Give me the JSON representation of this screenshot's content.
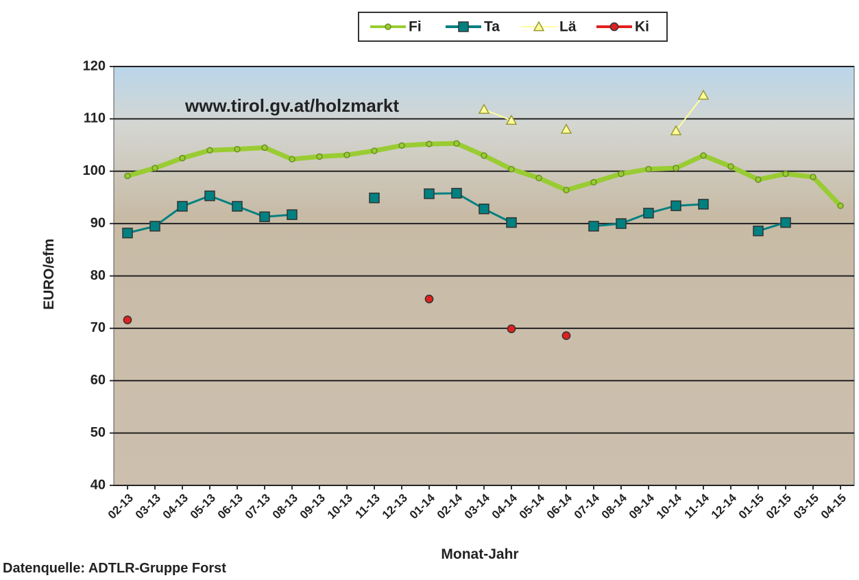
{
  "chart_data": {
    "type": "line",
    "annotation": "www.tirol.gv.at/holzmarkt",
    "source": "Datenquelle: ADTLR-Gruppe Forst",
    "x_label": "Monat-Jahr",
    "y_label": "EURO/efm",
    "categories": [
      "02-13",
      "03-13",
      "04-13",
      "05-13",
      "06-13",
      "07-13",
      "08-13",
      "09-13",
      "10-13",
      "11-13",
      "12-13",
      "01-14",
      "02-14",
      "03-14",
      "04-14",
      "05-14",
      "06-14",
      "07-14",
      "08-14",
      "09-14",
      "10-14",
      "11-14",
      "12-14",
      "01-15",
      "02-15",
      "03-15",
      "04-15"
    ],
    "series": [
      {
        "name": "Fi",
        "color": "#99cc33",
        "marker": "circle",
        "show_line": true,
        "values": [
          99.1,
          100.6,
          102.5,
          104,
          104.2,
          104.5,
          102.3,
          102.8,
          103.1,
          103.9,
          104.9,
          105.2,
          105.3,
          103,
          100.4,
          98.7,
          96.4,
          97.9,
          99.5,
          100.4,
          100.6,
          103,
          100.9,
          98.4,
          99.5,
          98.9,
          93.4
        ]
      },
      {
        "name": "Ta",
        "color": "#008080",
        "marker": "square",
        "show_line": true,
        "values": [
          88.2,
          89.5,
          93.3,
          95.3,
          93.3,
          91.3,
          91.7,
          null,
          null,
          94.9,
          null,
          95.7,
          95.8,
          92.8,
          90.2,
          null,
          null,
          89.5,
          90,
          92,
          93.4,
          93.7,
          null,
          88.6,
          90.2,
          null,
          null
        ]
      },
      {
        "name": "Lä",
        "color": "#ffff99",
        "marker": "triangle",
        "show_line": true,
        "values": [
          null,
          null,
          null,
          null,
          null,
          null,
          null,
          null,
          null,
          null,
          null,
          null,
          null,
          111.8,
          109.7,
          null,
          108,
          null,
          null,
          null,
          107.7,
          114.5,
          null,
          null,
          null,
          null,
          null
        ]
      },
      {
        "name": "Ki",
        "color": "#e02020",
        "marker": "circle",
        "show_line": false,
        "values": [
          71.6,
          null,
          null,
          null,
          null,
          null,
          null,
          null,
          null,
          null,
          null,
          75.6,
          null,
          null,
          69.9,
          null,
          68.6,
          null,
          null,
          null,
          null,
          null,
          null,
          null,
          null,
          null,
          null
        ]
      }
    ],
    "ylim": [
      40,
      120
    ],
    "yticks": [
      40,
      50,
      60,
      70,
      80,
      90,
      100,
      110,
      120
    ],
    "grid": true,
    "legend": "top"
  }
}
